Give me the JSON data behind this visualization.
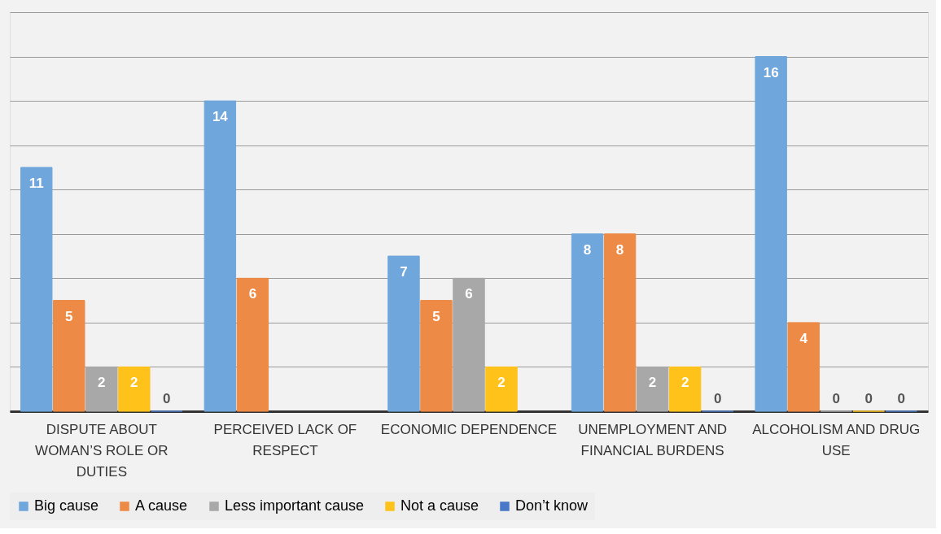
{
  "chart_data": {
    "type": "bar",
    "categories": [
      "DISPUTE ABOUT WOMAN’S ROLE OR DUTIES",
      "PERCEIVED LACK OF RESPECT",
      "ECONOMIC DEPENDENCE",
      "UNEMPLOYMENT AND FINANCIAL BURDENS",
      "ALCOHOLISM AND DRUG USE"
    ],
    "series": [
      {
        "name": "Big cause",
        "color": "#6fa6db",
        "values": [
          11,
          14,
          7,
          8,
          16
        ]
      },
      {
        "name": "A cause",
        "color": "#ed8a45",
        "values": [
          5,
          6,
          5,
          8,
          4
        ]
      },
      {
        "name": "Less important cause",
        "color": "#a8a8a8",
        "values": [
          2,
          null,
          6,
          2,
          0
        ]
      },
      {
        "name": "Not a cause",
        "color": "#ffc21a",
        "values": [
          2,
          null,
          2,
          2,
          0
        ]
      },
      {
        "name": "Don’t know",
        "color": "#4a78c8",
        "values": [
          0,
          null,
          null,
          0,
          0
        ]
      }
    ],
    "ylim": [
      0,
      18
    ],
    "yticks": [
      {
        "value": 0,
        "label": null
      },
      {
        "value": 2,
        "label": null
      },
      {
        "value": 4,
        "label": null
      },
      {
        "value": 6,
        "label": null
      },
      {
        "value": 8,
        "label": null
      },
      {
        "value": 10,
        "label": null
      },
      {
        "value": 12,
        "label": null
      },
      {
        "value": 14,
        "label": null
      },
      {
        "value": 16,
        "label": null
      },
      {
        "value": 18,
        "label": null
      }
    ],
    "grid": "y",
    "legend": "bottom",
    "data_labels": true
  }
}
